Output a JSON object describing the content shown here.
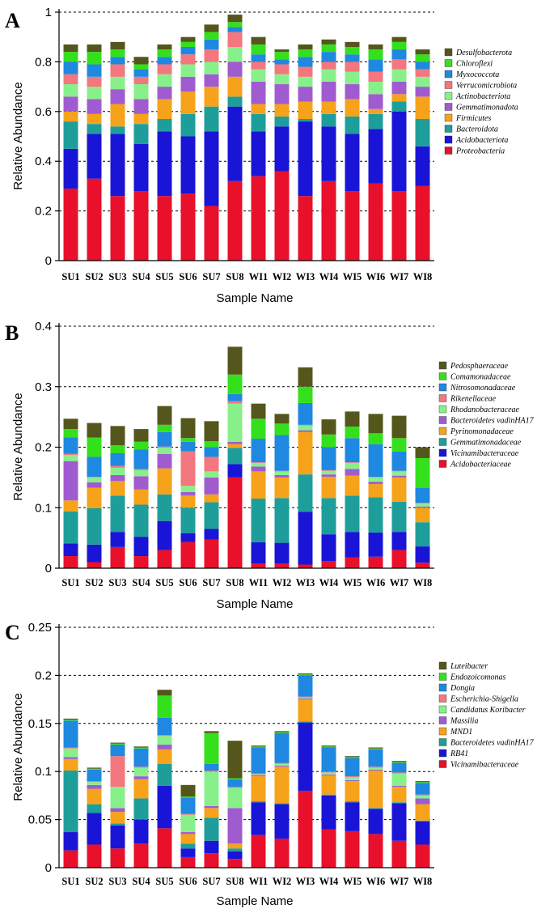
{
  "chart_data": [
    {
      "panel": "A",
      "type": "bar",
      "stacked": true,
      "title": "",
      "xlabel": "Sample Name",
      "ylabel": "Relative Abundance",
      "ylim": [
        0,
        1
      ],
      "yticks": [
        "0",
        "0.2",
        "0.4",
        "0.6",
        "0.8",
        "1"
      ],
      "grid": true,
      "legend_position": "right",
      "categories": [
        "SU1",
        "SU2",
        "SU3",
        "SU4",
        "SU5",
        "SU6",
        "SU7",
        "SU8",
        "WI1",
        "WI2",
        "WI3",
        "WI4",
        "WI5",
        "WI6",
        "WI7",
        "WI8"
      ],
      "series": [
        {
          "name": "Proteobacteria",
          "color": "#e8102a",
          "values": [
            0.29,
            0.33,
            0.26,
            0.28,
            0.26,
            0.27,
            0.22,
            0.32,
            0.34,
            0.36,
            0.26,
            0.32,
            0.28,
            0.31,
            0.28,
            0.3
          ]
        },
        {
          "name": "Acidobacteriota",
          "color": "#1a14d6",
          "values": [
            0.16,
            0.18,
            0.25,
            0.19,
            0.26,
            0.23,
            0.3,
            0.3,
            0.18,
            0.18,
            0.3,
            0.22,
            0.23,
            0.22,
            0.32,
            0.16
          ]
        },
        {
          "name": "Bacteroidota",
          "color": "#1e9e9a",
          "values": [
            0.11,
            0.04,
            0.03,
            0.08,
            0.05,
            0.09,
            0.1,
            0.04,
            0.07,
            0.04,
            0.01,
            0.05,
            0.07,
            0.06,
            0.04,
            0.11
          ]
        },
        {
          "name": "Firmicutes",
          "color": "#f6a21a",
          "values": [
            0.04,
            0.04,
            0.09,
            0.04,
            0.08,
            0.09,
            0.08,
            0.08,
            0.04,
            0.05,
            0.07,
            0.05,
            0.07,
            0.02,
            0.03,
            0.09
          ]
        },
        {
          "name": "Gemmatimonadota",
          "color": "#a15bd0",
          "values": [
            0.06,
            0.06,
            0.06,
            0.06,
            0.05,
            0.06,
            0.05,
            0.06,
            0.09,
            0.08,
            0.06,
            0.08,
            0.06,
            0.06,
            0.05,
            0.04
          ]
        },
        {
          "name": "Actinobacteriota",
          "color": "#88f08a",
          "values": [
            0.05,
            0.05,
            0.05,
            0.06,
            0.05,
            0.05,
            0.05,
            0.06,
            0.05,
            0.04,
            0.04,
            0.05,
            0.05,
            0.05,
            0.05,
            0.04
          ]
        },
        {
          "name": "Verrucomicrobiota",
          "color": "#f4767e",
          "values": [
            0.04,
            0.04,
            0.05,
            0.03,
            0.04,
            0.04,
            0.05,
            0.06,
            0.03,
            0.04,
            0.04,
            0.03,
            0.04,
            0.04,
            0.04,
            0.03
          ]
        },
        {
          "name": "Myxococcota",
          "color": "#1f88e0",
          "values": [
            0.05,
            0.05,
            0.03,
            0.03,
            0.03,
            0.03,
            0.04,
            0.02,
            0.03,
            0.02,
            0.04,
            0.04,
            0.03,
            0.05,
            0.04,
            0.03
          ]
        },
        {
          "name": "Chloroflexi",
          "color": "#34e01c",
          "values": [
            0.04,
            0.05,
            0.03,
            0.02,
            0.03,
            0.02,
            0.03,
            0.02,
            0.04,
            0.03,
            0.03,
            0.03,
            0.03,
            0.04,
            0.03,
            0.03
          ]
        },
        {
          "name": "Desulfobacterota",
          "color": "#55561c",
          "values": [
            0.03,
            0.03,
            0.03,
            0.03,
            0.02,
            0.02,
            0.03,
            0.03,
            0.03,
            0.01,
            0.02,
            0.02,
            0.02,
            0.02,
            0.02,
            0.02
          ]
        }
      ]
    },
    {
      "panel": "B",
      "type": "bar",
      "stacked": true,
      "title": "",
      "xlabel": "Sample Name",
      "ylabel": "Relative Abundance",
      "ylim": [
        0,
        0.4
      ],
      "yticks": [
        "0",
        "0.1",
        "0.2",
        "0.3",
        "0.4"
      ],
      "grid": true,
      "legend_position": "right",
      "categories": [
        "SU1",
        "SU2",
        "SU3",
        "SU4",
        "SU5",
        "SU6",
        "SU7",
        "SU8",
        "WI1",
        "WI2",
        "WI3",
        "WI4",
        "WI5",
        "WI6",
        "WI7",
        "WI8"
      ],
      "series": [
        {
          "name": "Acidobacteriaceae",
          "color": "#e8102a",
          "values": [
            0.02,
            0.01,
            0.035,
            0.02,
            0.03,
            0.043,
            0.047,
            0.15,
            0.008,
            0.008,
            0.006,
            0.012,
            0.018,
            0.019,
            0.03,
            0.009
          ]
        },
        {
          "name": "Vicinamibacteraceae",
          "color": "#1a14d6",
          "values": [
            0.021,
            0.029,
            0.025,
            0.032,
            0.048,
            0.015,
            0.018,
            0.022,
            0.035,
            0.034,
            0.087,
            0.044,
            0.042,
            0.04,
            0.03,
            0.027
          ]
        },
        {
          "name": "Gemmatimonadaceae",
          "color": "#1e9e9a",
          "values": [
            0.053,
            0.06,
            0.06,
            0.053,
            0.044,
            0.042,
            0.044,
            0.027,
            0.072,
            0.074,
            0.062,
            0.06,
            0.06,
            0.058,
            0.05,
            0.04
          ]
        },
        {
          "name": "Pyrinomonadaceae",
          "color": "#f6a21a",
          "values": [
            0.018,
            0.034,
            0.024,
            0.025,
            0.043,
            0.02,
            0.013,
            0.006,
            0.045,
            0.034,
            0.07,
            0.035,
            0.033,
            0.022,
            0.04,
            0.024
          ]
        },
        {
          "name": "Bacteroidetes vadinHA17",
          "color": "#a15bd0",
          "values": [
            0.065,
            0.009,
            0.01,
            0.022,
            0.024,
            0.006,
            0.028,
            0.004,
            0.008,
            0.004,
            0.003,
            0.004,
            0.011,
            0.004,
            0.003,
            0.002
          ]
        },
        {
          "name": "Rhodanobacteraceae",
          "color": "#88f08a",
          "values": [
            0.01,
            0.008,
            0.012,
            0.01,
            0.01,
            0.01,
            0.01,
            0.063,
            0.006,
            0.006,
            0.008,
            0.006,
            0.01,
            0.007,
            0.007,
            0.005
          ]
        },
        {
          "name": "Rikenellaceae",
          "color": "#f4767e",
          "values": [
            0.002,
            0.001,
            0.003,
            0.002,
            0.002,
            0.057,
            0.024,
            0.004,
            0.001,
            0.001,
            0.001,
            0.001,
            0.001,
            0.001,
            0.001,
            0.001
          ]
        },
        {
          "name": "Nitrosomonadaceae",
          "color": "#1f88e0",
          "values": [
            0.027,
            0.033,
            0.021,
            0.032,
            0.024,
            0.016,
            0.016,
            0.012,
            0.039,
            0.059,
            0.036,
            0.038,
            0.04,
            0.054,
            0.032,
            0.025
          ]
        },
        {
          "name": "Comamonadaceae",
          "color": "#34e01c",
          "values": [
            0.014,
            0.032,
            0.013,
            0.013,
            0.012,
            0.006,
            0.01,
            0.032,
            0.033,
            0.019,
            0.027,
            0.021,
            0.019,
            0.018,
            0.022,
            0.049
          ]
        },
        {
          "name": "Pedosphaeraceae",
          "color": "#55561c",
          "values": [
            0.017,
            0.024,
            0.032,
            0.021,
            0.031,
            0.033,
            0.033,
            0.046,
            0.025,
            0.016,
            0.032,
            0.025,
            0.025,
            0.032,
            0.037,
            0.018
          ]
        }
      ]
    },
    {
      "panel": "C",
      "type": "bar",
      "stacked": true,
      "title": "",
      "xlabel": "Sample Name",
      "ylabel": "Relative Abundance",
      "ylim": [
        0,
        0.25
      ],
      "yticks": [
        "0",
        "0.05",
        "0.1",
        "0.15",
        "0.2",
        "0.25"
      ],
      "grid": true,
      "legend_position": "right",
      "categories": [
        "SU1",
        "SU2",
        "SU3",
        "SU4",
        "SU5",
        "SU6",
        "SU7",
        "SU8",
        "WI1",
        "WI2",
        "WI3",
        "WI4",
        "WI5",
        "WI6",
        "WI7",
        "WI8"
      ],
      "series": [
        {
          "name": "Vicinamibacteraceae",
          "color": "#e8102a",
          "values": [
            0.018,
            0.024,
            0.02,
            0.025,
            0.041,
            0.011,
            0.015,
            0.009,
            0.034,
            0.03,
            0.08,
            0.04,
            0.038,
            0.035,
            0.028,
            0.024
          ]
        },
        {
          "name": "RB41",
          "color": "#1a14d6",
          "values": [
            0.019,
            0.033,
            0.024,
            0.025,
            0.044,
            0.009,
            0.013,
            0.008,
            0.034,
            0.036,
            0.071,
            0.035,
            0.03,
            0.026,
            0.039,
            0.024
          ]
        },
        {
          "name": "Bacteroidetes vadinHA17",
          "color": "#1e9e9a",
          "values": [
            0.064,
            0.009,
            0.002,
            0.022,
            0.023,
            0.005,
            0.024,
            0.003,
            0.001,
            0.001,
            0.001,
            0.001,
            0.001,
            0.001,
            0.001,
            0.001
          ]
        },
        {
          "name": "MND1",
          "color": "#f6a21a",
          "values": [
            0.012,
            0.016,
            0.012,
            0.02,
            0.015,
            0.01,
            0.01,
            0.005,
            0.026,
            0.038,
            0.023,
            0.02,
            0.021,
            0.039,
            0.016,
            0.017
          ]
        },
        {
          "name": "Massilia",
          "color": "#a15bd0",
          "values": [
            0.002,
            0.004,
            0.004,
            0.003,
            0.005,
            0.002,
            0.002,
            0.037,
            0.001,
            0.001,
            0.001,
            0.001,
            0.001,
            0.001,
            0.001,
            0.006
          ]
        },
        {
          "name": "Candidatus Koribacter",
          "color": "#88f08a",
          "values": [
            0.009,
            0.003,
            0.022,
            0.009,
            0.009,
            0.018,
            0.036,
            0.021,
            0.001,
            0.002,
            0.001,
            0.002,
            0.003,
            0.002,
            0.013,
            0.003
          ]
        },
        {
          "name": "Escherichia-Shigella",
          "color": "#f4767e",
          "values": [
            0.001,
            0.001,
            0.032,
            0.001,
            0.001,
            0.001,
            0.001,
            0.001,
            0.001,
            0.001,
            0.001,
            0.001,
            0.001,
            0.001,
            0.001,
            0.001
          ]
        },
        {
          "name": "Dongia",
          "color": "#1f88e0",
          "values": [
            0.028,
            0.012,
            0.012,
            0.019,
            0.018,
            0.017,
            0.007,
            0.008,
            0.027,
            0.031,
            0.022,
            0.025,
            0.019,
            0.018,
            0.01,
            0.012
          ]
        },
        {
          "name": "Endozoicomonas",
          "color": "#34e01c",
          "values": [
            0.001,
            0.001,
            0.001,
            0.001,
            0.023,
            0.001,
            0.032,
            0.001,
            0.001,
            0.001,
            0.001,
            0.001,
            0.001,
            0.001,
            0.001,
            0.001
          ]
        },
        {
          "name": "Luteibacter",
          "color": "#55561c",
          "values": [
            0.001,
            0.001,
            0.001,
            0.001,
            0.006,
            0.012,
            0.002,
            0.039,
            0.001,
            0.001,
            0.001,
            0.001,
            0.001,
            0.001,
            0.001,
            0.001
          ]
        }
      ]
    }
  ]
}
